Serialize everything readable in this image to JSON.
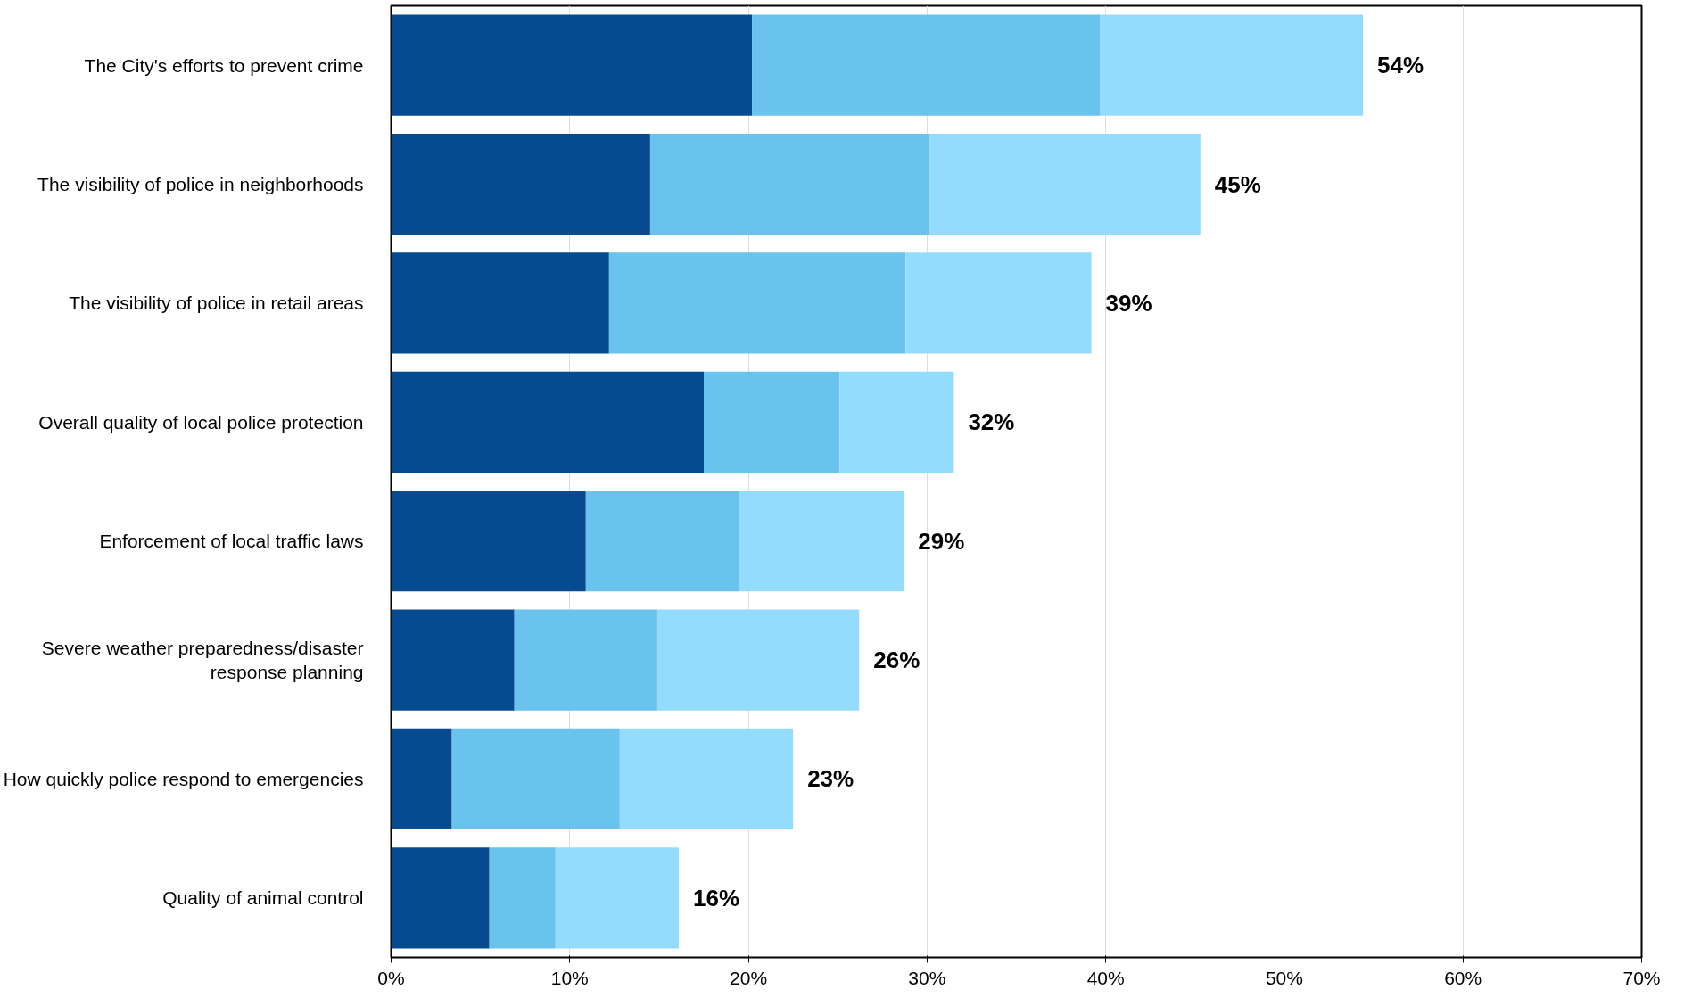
{
  "chart_data": {
    "type": "bar",
    "orientation": "horizontal",
    "stacked": true,
    "categories": [
      "The City's efforts to prevent crime",
      "The visibility of police in neighborhoods",
      "The visibility of police in retail areas",
      "Overall quality of local police protection",
      "Enforcement of local traffic laws",
      "Severe weather preparedness/disaster response planning",
      "How quickly police respond to emergencies",
      "Quality of animal control"
    ],
    "series": [
      {
        "color": "#064a8f",
        "values": [
          20.2,
          14.5,
          12.2,
          17.5,
          10.9,
          6.9,
          3.4,
          5.5
        ]
      },
      {
        "color": "#69c3ec",
        "values": [
          19.5,
          15.6,
          16.6,
          7.6,
          8.6,
          8.0,
          9.4,
          3.7
        ]
      },
      {
        "color": "#94dcfd",
        "values": [
          14.7,
          15.2,
          10.4,
          6.4,
          9.2,
          11.3,
          9.7,
          6.9
        ]
      }
    ],
    "totals": [
      "54%",
      "45%",
      "39%",
      "32%",
      "29%",
      "26%",
      "23%",
      "16%"
    ],
    "xlim": [
      0,
      70
    ],
    "xticks": [
      {
        "value": 0,
        "label": "0%"
      },
      {
        "value": 10,
        "label": "10%"
      },
      {
        "value": 20,
        "label": "20%"
      },
      {
        "value": 30,
        "label": "30%"
      },
      {
        "value": 40,
        "label": "40%"
      },
      {
        "value": 50,
        "label": "50%"
      },
      {
        "value": 60,
        "label": "60%"
      },
      {
        "value": 70,
        "label": "70%"
      }
    ],
    "grid": "x"
  }
}
